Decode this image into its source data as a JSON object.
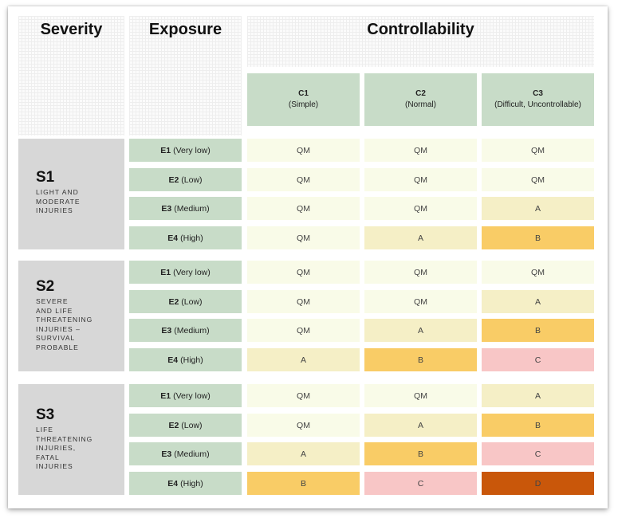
{
  "headers": {
    "severity": "Severity",
    "exposure": "Exposure",
    "controllability": "Controllability"
  },
  "controllability_columns": [
    {
      "code": "C1",
      "desc": "(Simple)"
    },
    {
      "code": "C2",
      "desc": "(Normal)"
    },
    {
      "code": "C3",
      "desc": "(Difficult, Uncontrollable)"
    }
  ],
  "severities": [
    {
      "code": "S1",
      "desc": "LIGHT AND\nMODERATE\nINJURIES"
    },
    {
      "code": "S2",
      "desc": "SEVERE\nAND LIFE\nTHREATENING\nINJURIES –\nSURVIVAL\nPROBABLE"
    },
    {
      "code": "S3",
      "desc": "LIFE\nTHREATENING\nINJURIES,\nFATAL\nINJURIES"
    }
  ],
  "exposures": [
    {
      "code": "E1",
      "desc": "(Very low)"
    },
    {
      "code": "E2",
      "desc": "(Low)"
    },
    {
      "code": "E3",
      "desc": "(Medium)"
    },
    {
      "code": "E4",
      "desc": "(High)"
    }
  ],
  "ratings": [
    [
      [
        "QM",
        "QM",
        "QM"
      ],
      [
        "QM",
        "QM",
        "QM"
      ],
      [
        "QM",
        "QM",
        "A"
      ],
      [
        "QM",
        "A",
        "B"
      ]
    ],
    [
      [
        "QM",
        "QM",
        "QM"
      ],
      [
        "QM",
        "QM",
        "A"
      ],
      [
        "QM",
        "A",
        "B"
      ],
      [
        "A",
        "B",
        "C"
      ]
    ],
    [
      [
        "QM",
        "QM",
        "A"
      ],
      [
        "QM",
        "A",
        "B"
      ],
      [
        "A",
        "B",
        "C"
      ],
      [
        "B",
        "C",
        "D"
      ]
    ]
  ],
  "rating_colors": {
    "QM": "#f9fbe8",
    "A": "#f5efc6",
    "B": "#f9cc66",
    "C": "#f8c6c6",
    "D": "#c9570a"
  }
}
